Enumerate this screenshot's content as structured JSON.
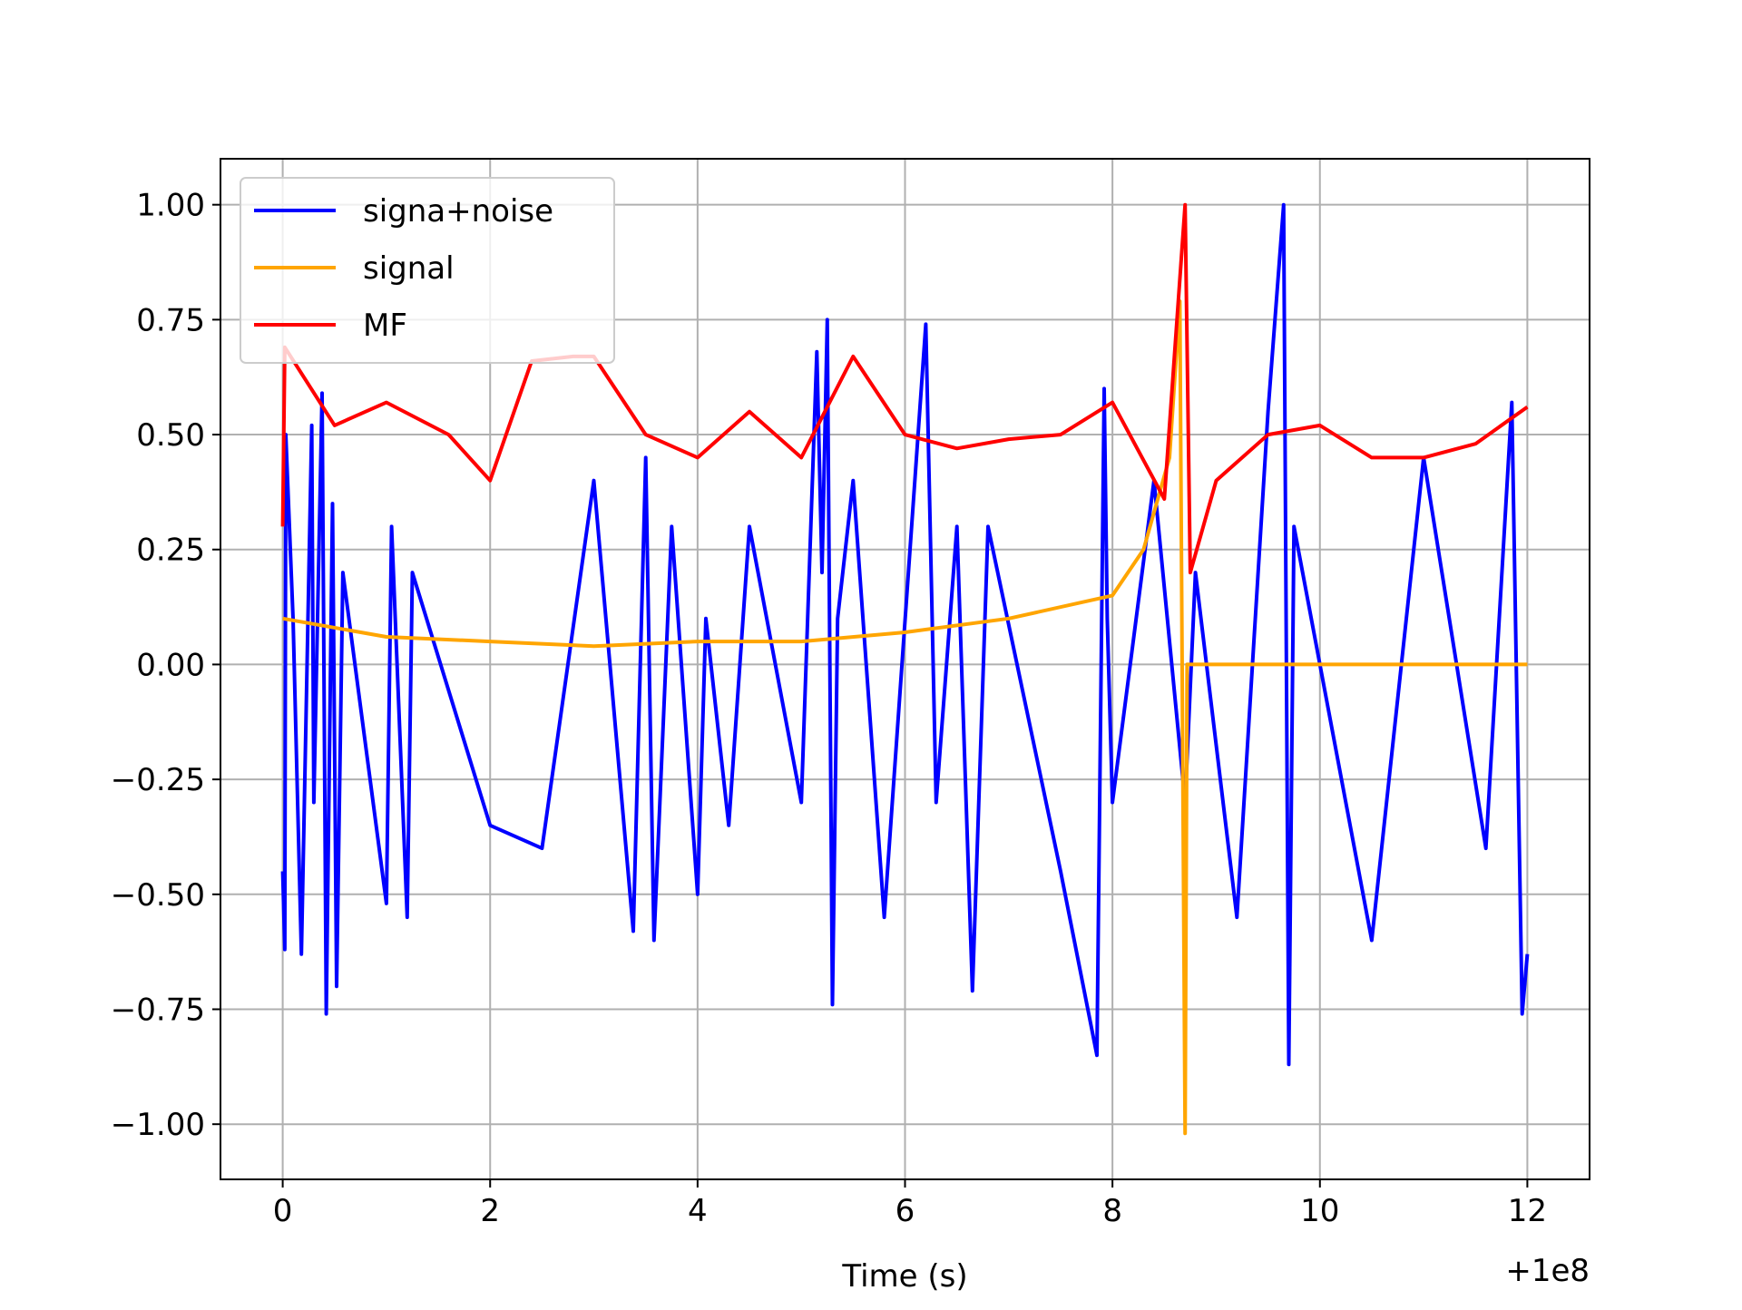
{
  "chart_data": {
    "type": "line",
    "xlabel": "Time (s)",
    "ylabel": "",
    "x_offset_label": "+1e8",
    "xlim": [
      -0.6,
      12.6
    ],
    "ylim": [
      -1.12,
      1.1
    ],
    "xticks": [
      0,
      2,
      4,
      6,
      8,
      10,
      12
    ],
    "xtick_labels": [
      "0",
      "2",
      "4",
      "6",
      "8",
      "10",
      "12"
    ],
    "yticks": [
      1.0,
      0.75,
      0.5,
      0.25,
      0.0,
      -0.25,
      -0.5,
      -0.75,
      -1.0
    ],
    "ytick_labels": [
      "1.00",
      "0.75",
      "0.50",
      "0.25",
      "0.00",
      "−0.25",
      "−0.50",
      "−0.75",
      "−1.00"
    ],
    "grid": true,
    "legend_position": "upper-left",
    "series": [
      {
        "name": "signa+noise",
        "color": "#0000ff",
        "x": [
          0.0,
          0.02,
          0.03,
          0.1,
          0.18,
          0.28,
          0.3,
          0.38,
          0.42,
          0.48,
          0.52,
          0.58,
          1.0,
          1.05,
          1.2,
          1.25,
          2.0,
          2.5,
          3.0,
          3.38,
          3.5,
          3.58,
          3.75,
          4.0,
          4.08,
          4.3,
          4.5,
          5.0,
          5.15,
          5.2,
          5.25,
          5.3,
          5.35,
          5.5,
          5.8,
          6.2,
          6.3,
          6.5,
          6.65,
          6.8,
          7.5,
          7.85,
          7.92,
          7.95,
          8.0,
          8.4,
          8.7,
          8.8,
          9.2,
          9.5,
          9.65,
          9.7,
          9.75,
          10.5,
          11.0,
          11.6,
          11.85,
          11.95,
          12.0
        ],
        "y": [
          -0.45,
          -0.62,
          0.5,
          0.1,
          -0.63,
          0.52,
          -0.3,
          0.59,
          -0.76,
          0.35,
          -0.7,
          0.2,
          -0.52,
          0.3,
          -0.55,
          0.2,
          -0.35,
          -0.4,
          0.4,
          -0.58,
          0.45,
          -0.6,
          0.3,
          -0.5,
          0.1,
          -0.35,
          0.3,
          -0.3,
          0.68,
          0.2,
          0.75,
          -0.74,
          0.1,
          0.4,
          -0.55,
          0.74,
          -0.3,
          0.3,
          -0.71,
          0.3,
          -0.45,
          -0.85,
          0.6,
          0.1,
          -0.3,
          0.4,
          -0.3,
          0.2,
          -0.55,
          0.55,
          1.0,
          -0.87,
          0.3,
          -0.6,
          0.45,
          -0.4,
          0.57,
          -0.76,
          -0.63
        ]
      },
      {
        "name": "signal",
        "color": "#ffa500",
        "x": [
          0.0,
          1.0,
          2.0,
          3.0,
          4.0,
          5.0,
          6.0,
          7.0,
          8.0,
          8.3,
          8.55,
          8.65,
          8.7,
          8.72,
          8.75,
          9.5,
          10.5,
          11.5,
          12.0
        ],
        "y": [
          0.1,
          0.06,
          0.05,
          0.04,
          0.05,
          0.05,
          0.07,
          0.1,
          0.15,
          0.25,
          0.45,
          0.79,
          -1.02,
          0.0,
          0.0,
          0.0,
          0.0,
          0.0,
          0.0
        ]
      },
      {
        "name": "MF",
        "color": "#ff0000",
        "x": [
          0.0,
          0.02,
          0.5,
          1.0,
          1.6,
          2.0,
          2.4,
          2.8,
          3.0,
          3.5,
          4.0,
          4.5,
          5.0,
          5.5,
          6.0,
          6.5,
          7.0,
          7.5,
          8.0,
          8.5,
          8.7,
          8.75,
          9.0,
          9.5,
          10.0,
          10.5,
          11.0,
          11.5,
          12.0
        ],
        "y": [
          0.3,
          0.69,
          0.52,
          0.57,
          0.5,
          0.4,
          0.66,
          0.67,
          0.67,
          0.5,
          0.45,
          0.55,
          0.45,
          0.67,
          0.5,
          0.47,
          0.49,
          0.5,
          0.57,
          0.36,
          1.0,
          0.2,
          0.4,
          0.5,
          0.52,
          0.45,
          0.45,
          0.48,
          0.56
        ]
      }
    ]
  }
}
